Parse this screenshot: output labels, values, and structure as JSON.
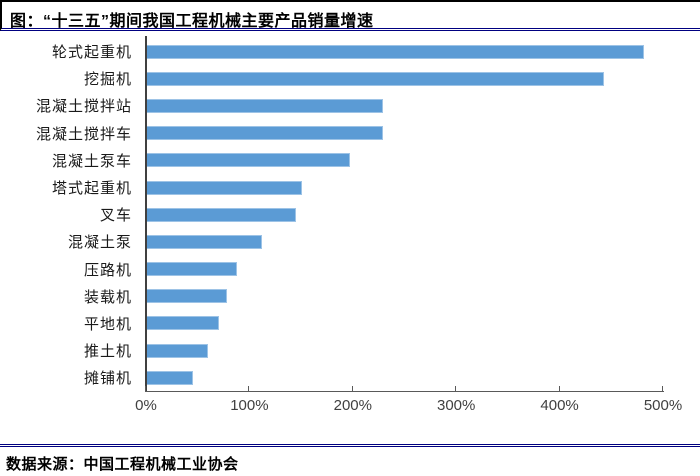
{
  "header": {
    "title": "图：“十三五”期间我国工程机械主要产品销量增速"
  },
  "footer": {
    "source": "数据来源：中国工程机械工业协会"
  },
  "colors": {
    "bar_fill": "#5B9BD5",
    "bar_border": "#9DC3E6",
    "navy_rule": "#000080",
    "y_axis": "#404040",
    "x_axis": "#595959",
    "tick_label": "#404040",
    "category_label": "#1A1A1A"
  },
  "chart_data": {
    "type": "bar",
    "orientation": "horizontal",
    "title": "图：“十三五”期间我国工程机械主要产品销量增速",
    "categories": [
      "轮式起重机",
      "挖掘机",
      "混凝土搅拌站",
      "混凝土搅拌车",
      "混凝土泵车",
      "塔式起重机",
      "叉车",
      "混凝土泵",
      "压路机",
      "装载机",
      "平地机",
      "推土机",
      "摊铺机"
    ],
    "values": [
      482,
      443,
      229,
      229,
      197,
      151,
      145,
      112,
      88,
      78,
      71,
      60,
      45
    ],
    "unit": "%",
    "xlabel": "",
    "ylabel": "",
    "xlim": [
      0,
      500
    ],
    "x_ticks": [
      "0%",
      "100%",
      "200%",
      "300%",
      "400%",
      "500%"
    ],
    "grid": false,
    "legend": "none",
    "bar_color": "#5B9BD5"
  }
}
